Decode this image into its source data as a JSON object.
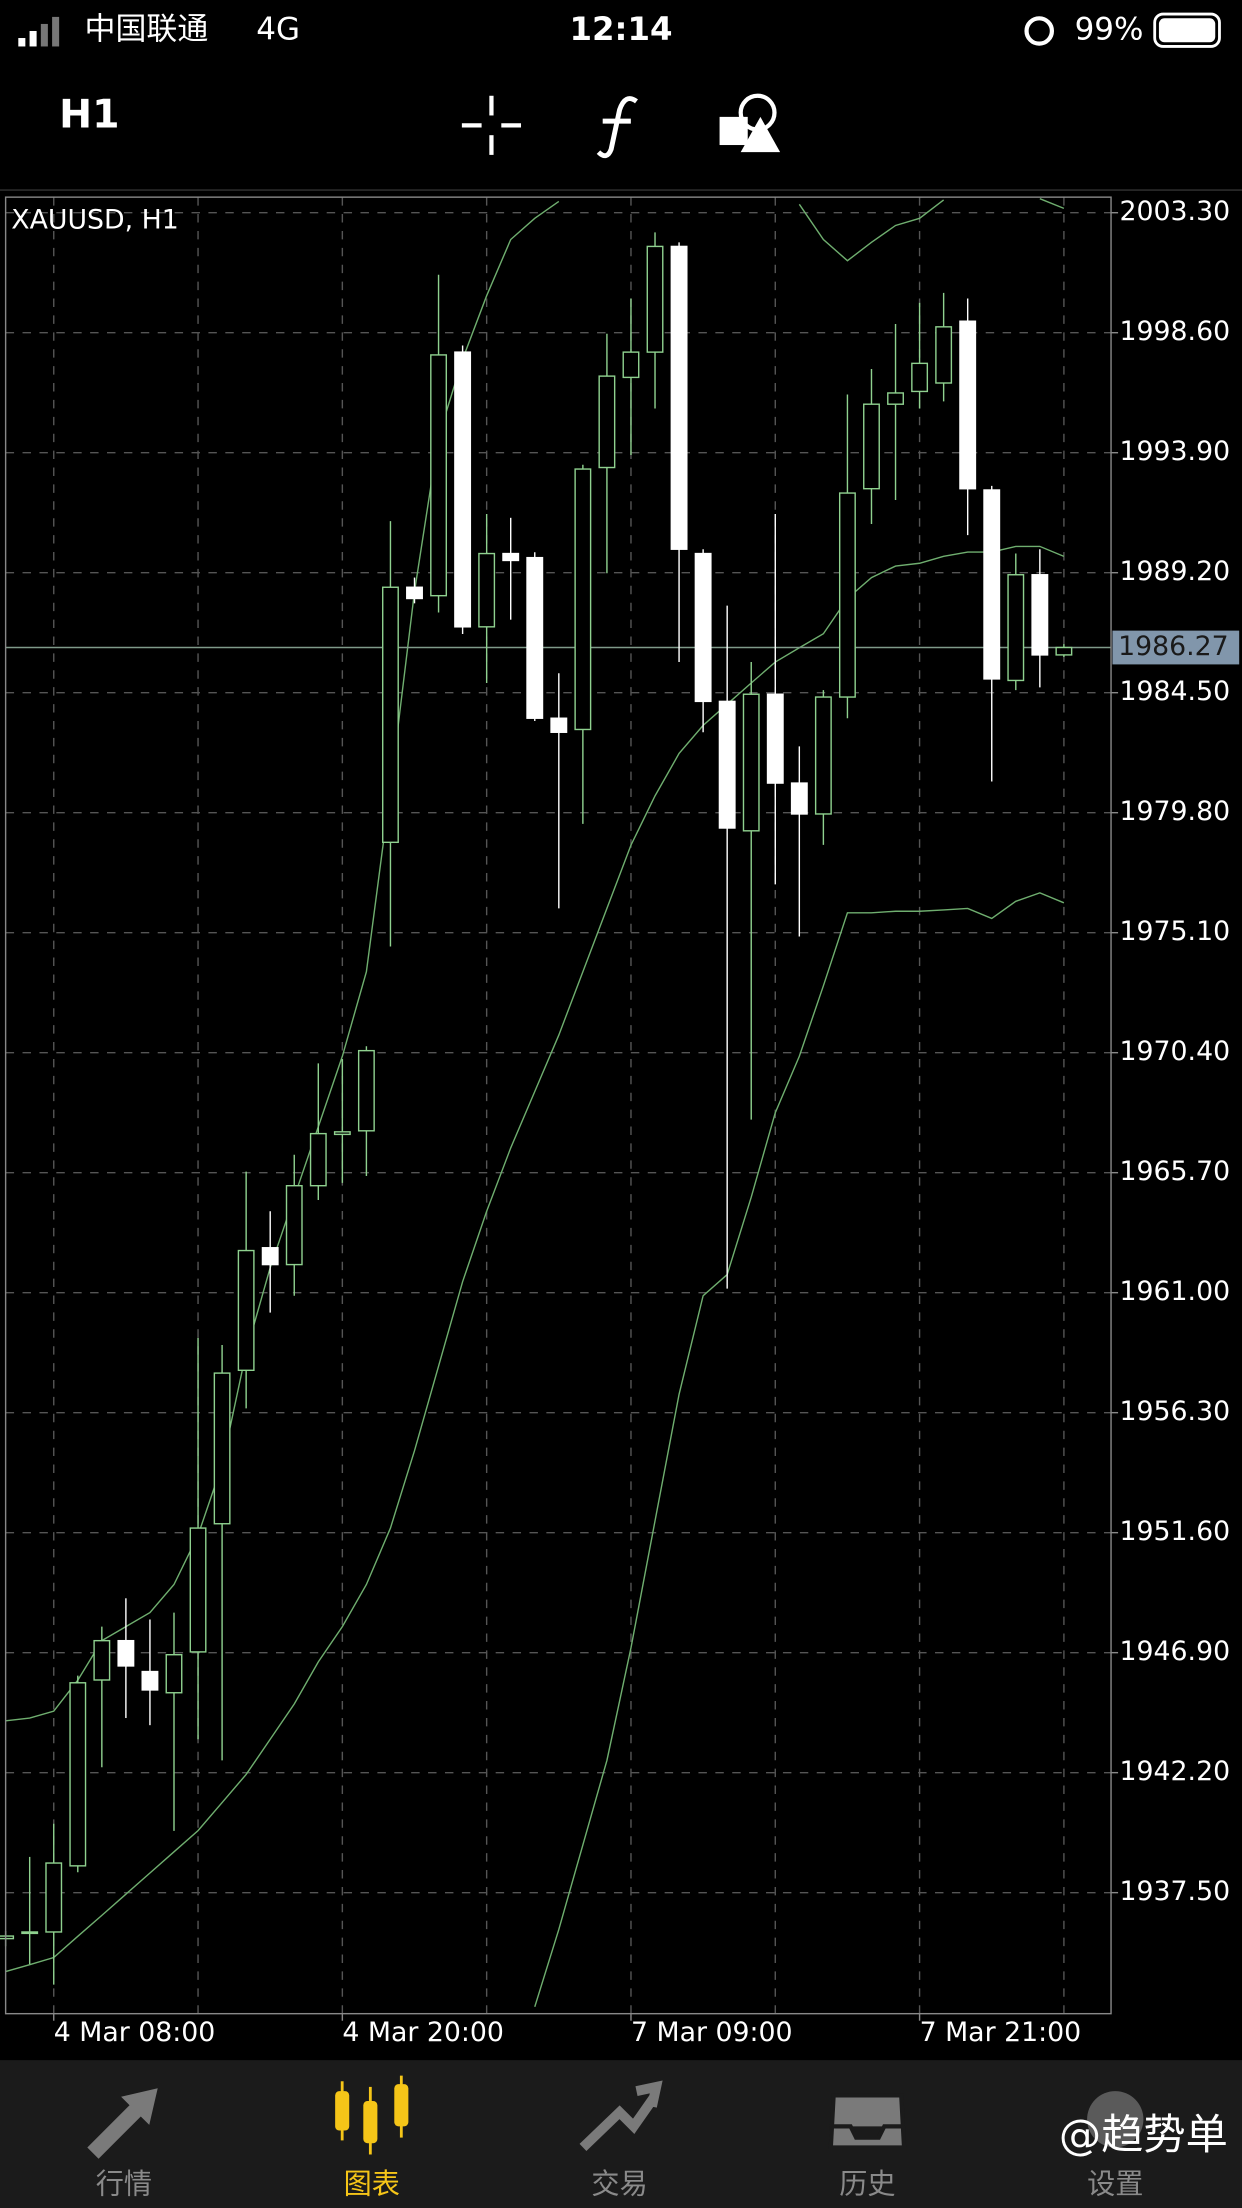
{
  "status_bar": {
    "carrier": "中国联通",
    "network": "4G",
    "time": "12:14",
    "battery": "99%"
  },
  "toolbar": {
    "timeframe": "H1"
  },
  "chart_data": {
    "type": "candlestick",
    "title": "XAUUSD, H1",
    "categories": [
      null,
      null,
      "4 Mar 08:00",
      null,
      null,
      null,
      null,
      null,
      null,
      null,
      null,
      null,
      null,
      null,
      "4 Mar 20:00",
      null,
      null,
      null,
      null,
      null,
      null,
      null,
      null,
      null,
      null,
      null,
      "7 Mar 09:00",
      null,
      null,
      null,
      null,
      null,
      null,
      null,
      null,
      null,
      null,
      null,
      "7 Mar 21:00",
      null,
      null,
      null,
      null,
      null,
      null
    ],
    "open": [
      1935.7,
      1935.96,
      1935.96,
      1938.55,
      1945.83,
      1947.37,
      1946.16,
      1945.33,
      1946.93,
      1951.95,
      1957.96,
      1962.76,
      1962.1,
      1965.19,
      1967.2,
      1967.34,
      1978.64,
      1988.63,
      1988.3,
      1997.84,
      1987.08,
      1989.95,
      1989.79,
      1983.5,
      1983.06,
      1993.32,
      1996.85,
      1997.84,
      2001.98,
      1989.95,
      1984.16,
      1979.09,
      1984.44,
      1980.96,
      1979.75,
      1984.33,
      1992.49,
      1995.8,
      1996.3,
      1996.63,
      1999.05,
      1992.44,
      1984.98,
      1989.12,
      1985.98
    ],
    "high": [
      1936,
      1938.9,
      1940.2,
      1946,
      1947.92,
      1949.03,
      1948.2,
      1948.47,
      1959.23,
      1958.95,
      1965.74,
      1964.19,
      1966.4,
      1969.98,
      1970.15,
      1970.65,
      1991.22,
      1989.01,
      2000.87,
      1998.1,
      1991.5,
      1991.35,
      1990,
      1985.26,
      1993.43,
      1998.56,
      1999.94,
      2002.53,
      2002.14,
      1990.12,
      1987.91,
      1985.7,
      1991.5,
      1982.4,
      1984.6,
      1996.18,
      1997.18,
      1998.94,
      1999.77,
      2000.16,
      1999.94,
      1992.6,
      1989.95,
      1990.12,
      1986.4
    ],
    "low": [
      1935.4,
      1934.7,
      1933.9,
      1938.3,
      1942.41,
      1944.34,
      1944.06,
      1939.92,
      1943.51,
      1942.68,
      1956.47,
      1960.22,
      1960.88,
      1964.63,
      1965.3,
      1965.57,
      1974.56,
      1988,
      1987.64,
      1986.8,
      1984.88,
      1987.36,
      1983.39,
      1976.05,
      1979.36,
      1989.18,
      1993.81,
      1995.63,
      1985.7,
      1982.95,
      1961.16,
      1967.78,
      1976.99,
      1974.95,
      1978.54,
      1983.5,
      1991.11,
      1992.05,
      1995.63,
      1995.91,
      1990.67,
      1981.02,
      1984.6,
      1984.71,
      1985.9
    ],
    "close": [
      1935.8,
      1935.96,
      1938.66,
      1945.72,
      1947.37,
      1946.38,
      1945.44,
      1946.82,
      1951.78,
      1957.85,
      1962.65,
      1962.1,
      1965.19,
      1967.23,
      1967.3,
      1970.48,
      1988.63,
      1988.19,
      1997.73,
      1987.08,
      1989.95,
      1989.68,
      1983.5,
      1982.95,
      1993.26,
      1996.9,
      1997.84,
      2001.98,
      1990.12,
      1984.16,
      1979.2,
      1984.44,
      1980.96,
      1979.75,
      1984.33,
      1992.32,
      1995.8,
      1996.24,
      1997.4,
      1998.83,
      1992.49,
      1985.04,
      1989.12,
      1985.98,
      1986.27
    ],
    "up_color": "#8fd18f",
    "down_color": "#ffffff",
    "bands": [
      {
        "color": "#6fae6f",
        "values": [
          1944.23,
          1944.34,
          1944.61,
          1945.82,
          1947.37,
          1947.92,
          1948.47,
          1949.57,
          1951.5,
          1954.26,
          1958.67,
          1961.98,
          1964.74,
          1967.5,
          1970.26,
          1973.57,
          1980.74,
          1988.46,
          1994.53,
          1997.56,
          2000.05,
          2002.25,
          2003.08,
          2003.74,
          null,
          null,
          null,
          null,
          null,
          null,
          null,
          null,
          null,
          2003.63,
          2002.25,
          2001.42,
          2002.14,
          2002.8,
          2003.08,
          2003.8,
          null,
          null,
          null,
          2003.85,
          2003.47
        ]
      },
      {
        "color": "#6fae6f",
        "values": [
          1934.41,
          1934.68,
          1934.96,
          1935.79,
          1936.61,
          1937.44,
          1938.27,
          1939.1,
          1939.93,
          1941.03,
          1942.13,
          1943.51,
          1944.89,
          1946.54,
          1947.92,
          1949.57,
          1951.78,
          1954.81,
          1958.12,
          1961.43,
          1964.19,
          1966.67,
          1968.88,
          1971.09,
          1973.57,
          1976.05,
          1978.53,
          1980.46,
          1982.12,
          1983.22,
          1984.05,
          1984.88,
          1985.7,
          1986.26,
          1986.81,
          1988.19,
          1989.01,
          1989.46,
          1989.57,
          1989.84,
          1990.01,
          1990.01,
          1990.23,
          1990.23,
          1989.84
        ]
      },
      {
        "color": "#6fae6f",
        "values": [
          null,
          null,
          null,
          null,
          null,
          null,
          null,
          null,
          null,
          null,
          null,
          null,
          null,
          null,
          null,
          null,
          null,
          null,
          null,
          null,
          null,
          null,
          1933.03,
          1936.06,
          1939.37,
          1942.68,
          1947.09,
          1952.06,
          1957.02,
          1960.88,
          1961.71,
          1964.74,
          1968.05,
          1970.26,
          1973.02,
          1975.88,
          1975.88,
          1975.94,
          1975.94,
          1975.99,
          1976.05,
          1975.66,
          1976.33,
          1976.66,
          1976.27
        ]
      }
    ],
    "last_price": 1986.27,
    "ylim": [
      1932.76,
      2003.91
    ],
    "yticks": [
      {
        "value": 2003.3,
        "label": "2003.30"
      },
      {
        "value": 1998.6,
        "label": "1998.60"
      },
      {
        "value": 1993.9,
        "label": "1993.90"
      },
      {
        "value": 1989.2,
        "label": "1989.20"
      },
      {
        "value": 1984.5,
        "label": "1984.50"
      },
      {
        "value": 1979.8,
        "label": "1979.80"
      },
      {
        "value": 1975.1,
        "label": "1975.10"
      },
      {
        "value": 1970.4,
        "label": "1970.40"
      },
      {
        "value": 1965.7,
        "label": "1965.70"
      },
      {
        "value": 1961,
        "label": "1961.00"
      },
      {
        "value": 1956.3,
        "label": "1956.30"
      },
      {
        "value": 1951.6,
        "label": "1951.60"
      },
      {
        "value": 1946.9,
        "label": "1946.90"
      },
      {
        "value": 1942.2,
        "label": "1942.20"
      },
      {
        "value": 1937.5,
        "label": "1937.50"
      }
    ],
    "grid": true
  },
  "nav": [
    "行情",
    "图表",
    "交易",
    "历史",
    "设置"
  ],
  "watermark": "@趋势单"
}
